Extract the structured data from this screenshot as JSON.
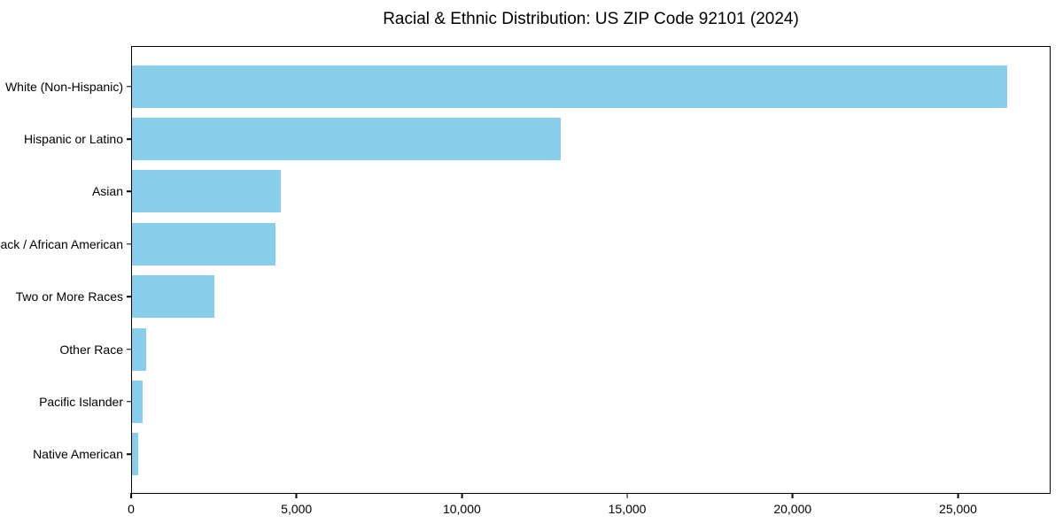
{
  "figure": {
    "background": "#ffffff",
    "text_color": "#000000"
  },
  "chart_data": {
    "type": "bar",
    "orientation": "horizontal",
    "title": "Racial & Ethnic Distribution: US ZIP Code 92101 (2024)",
    "categories": [
      "White (Non-Hispanic)",
      "Hispanic or Latino",
      "Asian",
      "Black / African American",
      "Two or More Races",
      "Other Race",
      "Pacific Islander",
      "Native American"
    ],
    "values": [
      26500,
      13000,
      4500,
      4350,
      2500,
      440,
      320,
      200
    ],
    "bar_color": "#87CEEB",
    "xlabel": "",
    "ylabel": "",
    "xlim": [
      0,
      27800
    ],
    "xtick_values": [
      0,
      5000,
      10000,
      15000,
      20000,
      25000
    ],
    "xtick_labels": [
      "0",
      "5,000",
      "10,000",
      "15,000",
      "20,000",
      "25,000"
    ],
    "grid": false,
    "legend_position": "none"
  }
}
